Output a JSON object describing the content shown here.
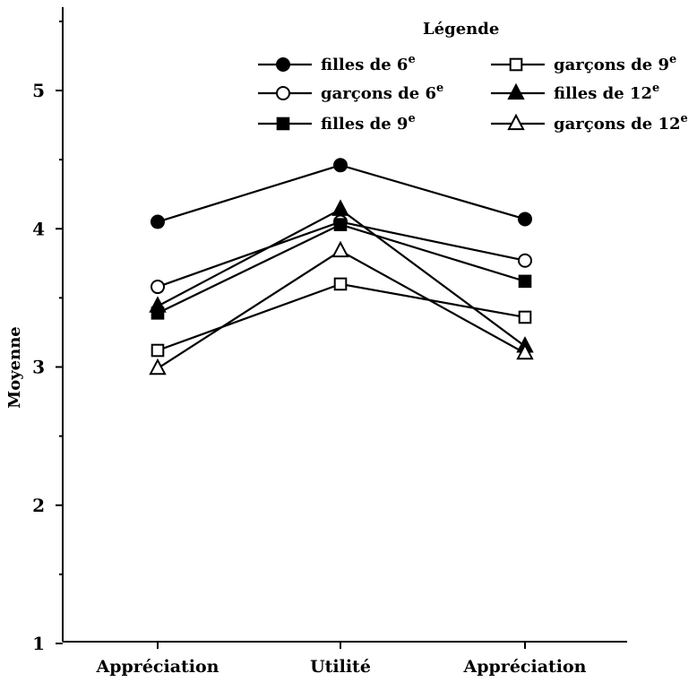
{
  "chart_data": {
    "type": "line",
    "title": "",
    "xlabel": "",
    "ylabel": "Moyenne",
    "ylim": [
      1,
      5.6
    ],
    "yticks": [
      1,
      2,
      3,
      4,
      5
    ],
    "y_tick_labels": [
      "1",
      "2",
      "3",
      "4",
      "5"
    ],
    "categories": [
      "Appréciation",
      "Utilité",
      "Appréciation"
    ],
    "grid": false,
    "legend": {
      "title": "Légende",
      "placement": "top-right",
      "columns": 2
    },
    "series": [
      {
        "name": "filles de 6",
        "suffix": "e",
        "marker": "circle",
        "filled": true,
        "values": [
          4.05,
          4.46,
          4.07
        ]
      },
      {
        "name": "garçons de 6",
        "suffix": "e",
        "marker": "circle",
        "filled": false,
        "values": [
          3.58,
          4.05,
          3.77
        ]
      },
      {
        "name": "filles de 9",
        "suffix": "e",
        "marker": "square",
        "filled": true,
        "values": [
          3.39,
          4.03,
          3.62
        ]
      },
      {
        "name": "garçons de 9",
        "suffix": "e",
        "marker": "square",
        "filled": false,
        "values": [
          3.12,
          3.6,
          3.36
        ]
      },
      {
        "name": "filles de 12",
        "suffix": "e",
        "marker": "triangle",
        "filled": true,
        "values": [
          3.44,
          4.14,
          3.15
        ]
      },
      {
        "name": "garçons de 12",
        "suffix": "e",
        "marker": "triangle",
        "filled": false,
        "values": [
          2.99,
          3.84,
          3.1
        ]
      }
    ]
  }
}
